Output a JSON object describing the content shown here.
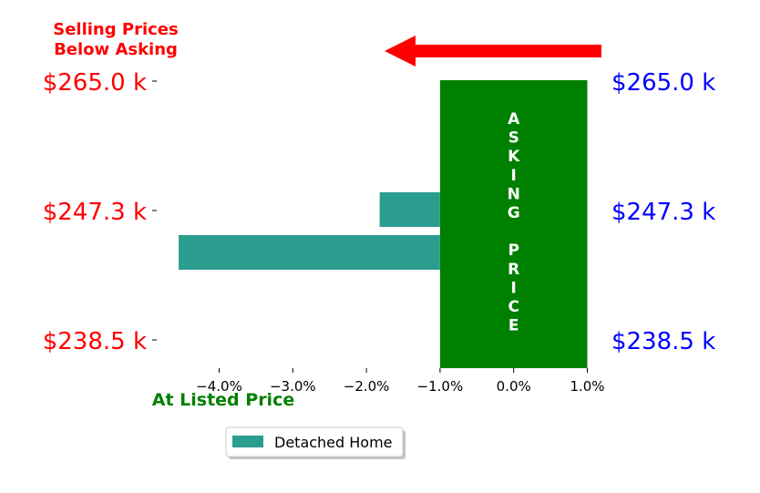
{
  "chart_data": {
    "type": "bar",
    "orientation": "horizontal",
    "annotation_top": [
      "Selling Prices",
      "Below Asking"
    ],
    "annotation_bottom": "At Listed Price",
    "band_label": "ASKING PRICE",
    "left_tick_labels": [
      "$265.0 k",
      "$247.3 k",
      "$238.5 k"
    ],
    "right_tick_labels": [
      "$265.0 k",
      "$247.3 k",
      "$238.5 k"
    ],
    "x_ticks": [
      -4.0,
      -3.0,
      -2.0,
      -1.0,
      0.0,
      1.0
    ],
    "x_tick_labels": [
      "−4.0%",
      "−3.0%",
      "−2.0%",
      "−1.0%",
      "0.0%",
      "1.0%"
    ],
    "xlim": [
      -4.0,
      1.0
    ],
    "series": [
      {
        "name": "Detached Home",
        "color": "#2a9d8f",
        "bars": [
          {
            "x_start": -1.0,
            "x_end": -1.82
          },
          {
            "x_start": -1.0,
            "x_end": -4.55
          }
        ]
      }
    ],
    "band": {
      "x_start": -1.0,
      "x_end": 1.0,
      "color": "#008000"
    },
    "colors": {
      "left_labels": "#ff0000",
      "right_labels": "#0000ff",
      "annotation_top": "#ff0000",
      "annotation_bottom": "#008000",
      "arrow": "#ff0000"
    },
    "legend": {
      "placement": "bottom-center",
      "entries": [
        "Detached Home"
      ]
    }
  }
}
